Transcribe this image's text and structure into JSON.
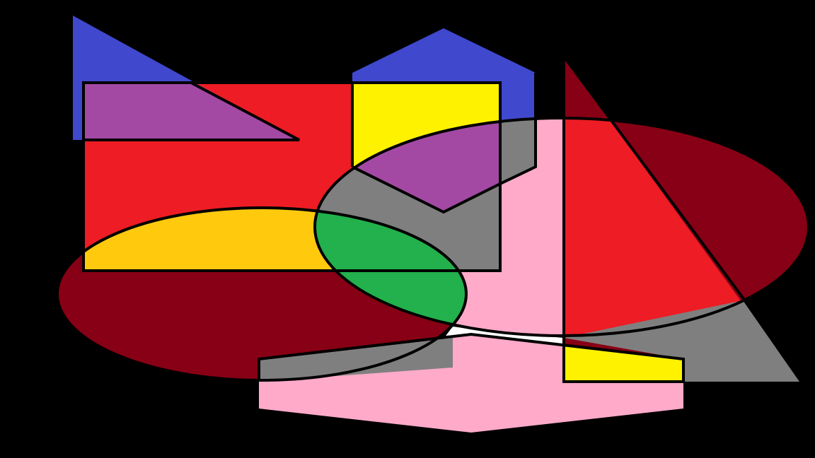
{
  "palette": {
    "background": "#000000",
    "outline": "#000000",
    "blue": "#4048CE",
    "red": "#EE1C24",
    "yellow": "#FFF200",
    "pink": "#FFAAC9",
    "dark_red": "#880015",
    "gray": "#7F7F7F",
    "purple": "#A349A4",
    "green": "#22B14C",
    "amber": "#FFC90E",
    "white": "#FFFFFF"
  },
  "shapes": [
    {
      "name": "blue-triangle",
      "kind": "triangle",
      "fill": "blue"
    },
    {
      "name": "blue-pentagon",
      "kind": "pentagon",
      "fill": "blue"
    },
    {
      "name": "dark-red-triangle",
      "kind": "triangle",
      "fill": "dark_red"
    },
    {
      "name": "red-rectangle",
      "kind": "rectangle",
      "fill": "red"
    },
    {
      "name": "yellow-square",
      "kind": "rectangle",
      "fill": "yellow"
    },
    {
      "name": "pink-hexagon",
      "kind": "hexagon",
      "fill": "pink"
    },
    {
      "name": "gray-ellipse",
      "kind": "ellipse",
      "fill": "gray"
    },
    {
      "name": "dark-red-ellipse",
      "kind": "ellipse",
      "fill": "dark_red"
    },
    {
      "name": "amber-ellipse",
      "kind": "ellipse",
      "fill": "amber"
    },
    {
      "name": "green-ellipse",
      "kind": "ellipse",
      "fill": "green"
    }
  ]
}
